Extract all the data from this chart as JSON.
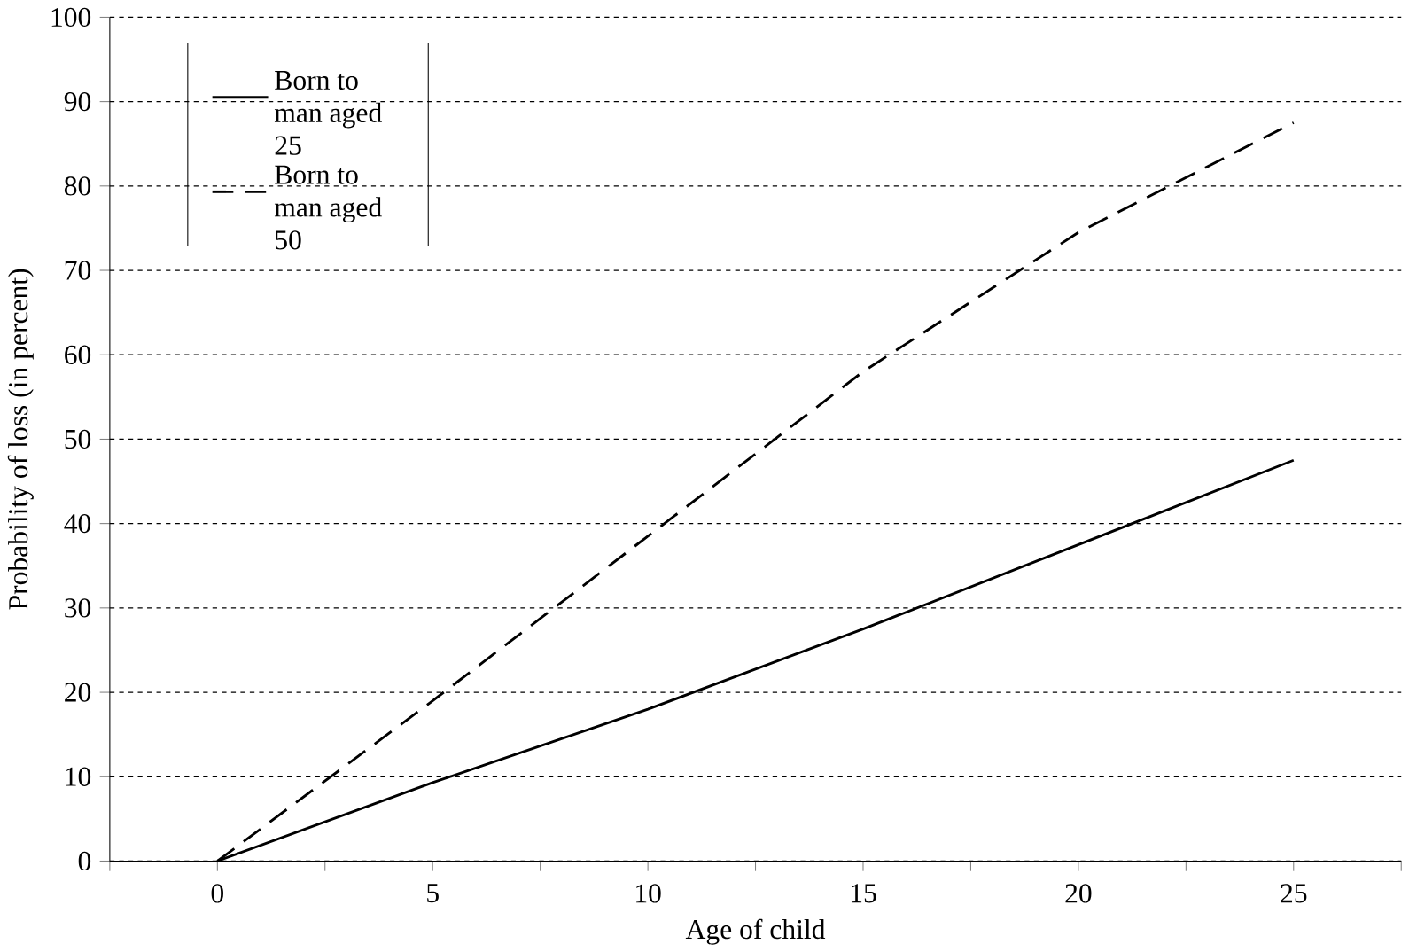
{
  "chart_data": {
    "type": "line",
    "xlabel": "Age of child",
    "ylabel": "Probability of loss (in percent)",
    "x": [
      0,
      5,
      10,
      15,
      20,
      25
    ],
    "series": [
      {
        "name": "Born to man aged 25",
        "color": "#000000",
        "line_style": "solid",
        "values": [
          0,
          9.3,
          18,
          27.5,
          37.5,
          47.5
        ]
      },
      {
        "name": "Born to man aged 50",
        "color": "#000000",
        "line_style": "dashed",
        "values": [
          0,
          19,
          38.5,
          58,
          74.5,
          87.5
        ]
      }
    ],
    "xlim": [
      -2.5,
      27.5
    ],
    "xticks": [
      {
        "value": -2.5,
        "label": null
      },
      0,
      {
        "value": 2.5,
        "label": null
      },
      5,
      {
        "value": 7.5,
        "label": null
      },
      10,
      {
        "value": 12.5,
        "label": null
      },
      15,
      {
        "value": 17.5,
        "label": null
      },
      20,
      {
        "value": 22.5,
        "label": null
      },
      25,
      {
        "value": 27.5,
        "label": null
      }
    ],
    "ylim": [
      0,
      100
    ],
    "yticks": [
      0,
      10,
      20,
      30,
      40,
      50,
      60,
      70,
      80,
      90,
      100
    ],
    "grid": "y",
    "legend": "top left",
    "marker": "none"
  }
}
